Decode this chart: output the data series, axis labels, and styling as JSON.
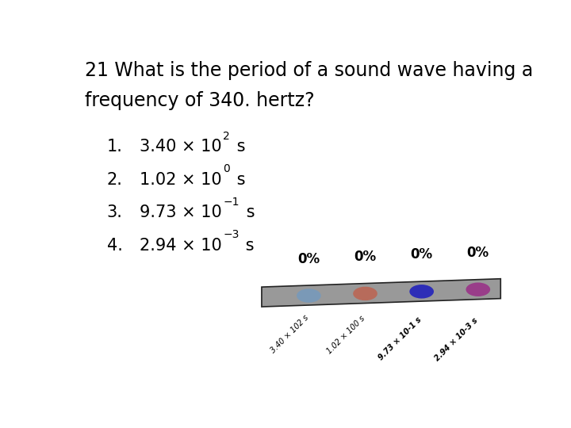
{
  "title_line1": "21 What is the period of a sound wave having a",
  "title_line2": "frequency of 340. hertz?",
  "options": [
    {
      "num": "1.",
      "text": "3.40 × 10",
      "exp": "2",
      "suffix": " s"
    },
    {
      "num": "2.",
      "text": "1.02 × 10",
      "exp": "0",
      "suffix": " s"
    },
    {
      "num": "3.",
      "text": "9.73 × 10",
      "exp": "−1",
      "suffix": " s"
    },
    {
      "num": "4.",
      "text": "2.94 × 10",
      "exp": "−3",
      "suffix": " s"
    }
  ],
  "percentages": [
    "0%",
    "0%",
    "0%",
    "0%"
  ],
  "dot_colors": [
    "#7799BB",
    "#BB6655",
    "#2222BB",
    "#993388"
  ],
  "bar_color": "#999999",
  "background_color": "#ffffff",
  "title_fontsize": 17,
  "option_fontsize": 15,
  "percent_fontsize": 12,
  "label_fontsize": 7,
  "labels": [
    "3.40 × 102 s",
    "1.02 × 100 s",
    "9.73 × 10-1 s",
    "2.94 × 10-3 s"
  ]
}
